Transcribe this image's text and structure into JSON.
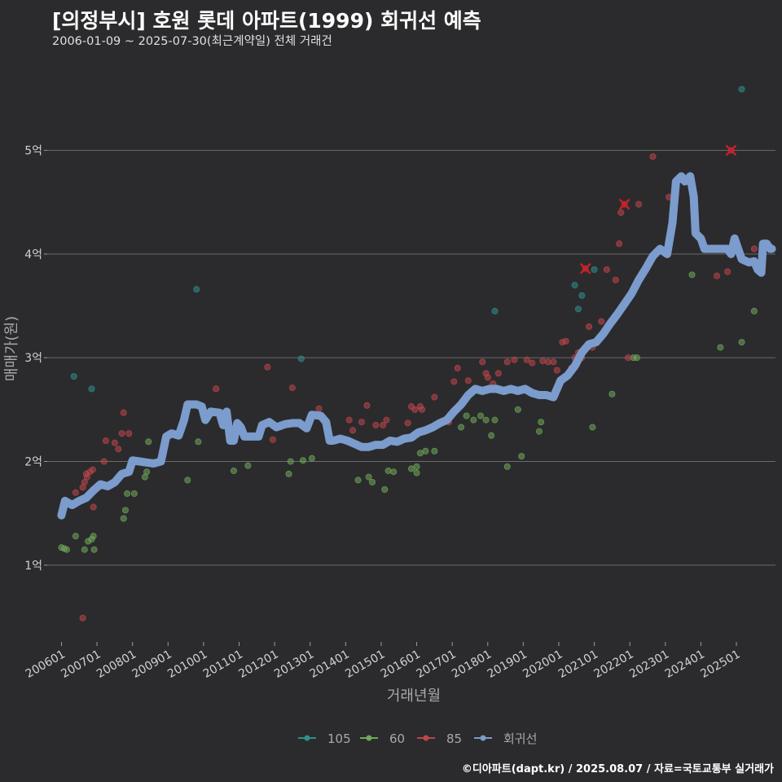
{
  "title": "[의정부시] 호원 롯데 아파트(1999) 회귀선 예측",
  "subtitle": "2006-01-09 ~ 2025-07-30(최근계약일) 전체 거래건",
  "footer": "©디아파트(dapt.kr) / 2025.08.07 / 자료=국토교통부 실거래가",
  "chart_data": {
    "type": "scatter",
    "xlabel": "거래년월",
    "ylabel": "매매가(원)",
    "xlim": [
      2005.6,
      2026.1
    ],
    "ylim": [
      0.26,
      5.9
    ],
    "y_unit": "억",
    "yticks": [
      {
        "value": 1,
        "label": "1억"
      },
      {
        "value": 2,
        "label": "2억"
      },
      {
        "value": 3,
        "label": "3억"
      },
      {
        "value": 4,
        "label": "4억"
      },
      {
        "value": 5,
        "label": "5억"
      }
    ],
    "xticks": [
      {
        "value": 2006.0,
        "label": "200601"
      },
      {
        "value": 2007.0,
        "label": "200701"
      },
      {
        "value": 2008.0,
        "label": "200801"
      },
      {
        "value": 2009.0,
        "label": "200901"
      },
      {
        "value": 2010.0,
        "label": "201001"
      },
      {
        "value": 2011.0,
        "label": "201101"
      },
      {
        "value": 2012.0,
        "label": "201201"
      },
      {
        "value": 2013.0,
        "label": "201301"
      },
      {
        "value": 2014.0,
        "label": "201401"
      },
      {
        "value": 2015.0,
        "label": "201501"
      },
      {
        "value": 2016.0,
        "label": "201601"
      },
      {
        "value": 2017.0,
        "label": "201701"
      },
      {
        "value": 2018.0,
        "label": "201801"
      },
      {
        "value": 2019.0,
        "label": "201901"
      },
      {
        "value": 2020.0,
        "label": "202001"
      },
      {
        "value": 2021.0,
        "label": "202101"
      },
      {
        "value": 2022.0,
        "label": "202201"
      },
      {
        "value": 2023.0,
        "label": "202301"
      },
      {
        "value": 2024.0,
        "label": "202401"
      },
      {
        "value": 2025.0,
        "label": "202501"
      }
    ],
    "legend_position": "bottom",
    "series": [
      {
        "name": "105",
        "color": "#2f8f8a",
        "points": [
          [
            2006.35,
            2.82
          ],
          [
            2006.85,
            2.7
          ],
          [
            2009.8,
            3.66
          ],
          [
            2012.75,
            2.99
          ],
          [
            2018.2,
            3.45
          ],
          [
            2020.45,
            3.7
          ],
          [
            2020.55,
            3.47
          ],
          [
            2020.65,
            3.6
          ],
          [
            2021.0,
            3.85
          ],
          [
            2025.15,
            5.59
          ]
        ]
      },
      {
        "name": "60",
        "color": "#6fa85a",
        "points": [
          [
            2006.0,
            1.17
          ],
          [
            2006.08,
            1.16
          ],
          [
            2006.15,
            1.15
          ],
          [
            2006.4,
            1.28
          ],
          [
            2006.65,
            1.15
          ],
          [
            2006.75,
            1.23
          ],
          [
            2006.85,
            1.25
          ],
          [
            2006.9,
            1.28
          ],
          [
            2006.92,
            1.15
          ],
          [
            2007.75,
            1.45
          ],
          [
            2007.8,
            1.53
          ],
          [
            2007.85,
            1.69
          ],
          [
            2008.05,
            1.69
          ],
          [
            2008.35,
            1.85
          ],
          [
            2008.4,
            1.9
          ],
          [
            2008.45,
            2.19
          ],
          [
            2009.55,
            1.82
          ],
          [
            2009.85,
            2.19
          ],
          [
            2010.85,
            1.91
          ],
          [
            2011.25,
            1.96
          ],
          [
            2012.4,
            1.88
          ],
          [
            2012.45,
            2.0
          ],
          [
            2012.8,
            2.01
          ],
          [
            2013.05,
            2.03
          ],
          [
            2014.35,
            1.82
          ],
          [
            2014.65,
            1.85
          ],
          [
            2014.75,
            1.8
          ],
          [
            2015.1,
            1.73
          ],
          [
            2015.2,
            1.91
          ],
          [
            2015.35,
            1.9
          ],
          [
            2015.85,
            1.93
          ],
          [
            2016.0,
            1.89
          ],
          [
            2016.0,
            1.95
          ],
          [
            2016.1,
            2.08
          ],
          [
            2016.25,
            2.1
          ],
          [
            2016.5,
            2.1
          ],
          [
            2017.25,
            2.33
          ],
          [
            2017.4,
            2.44
          ],
          [
            2017.6,
            2.4
          ],
          [
            2017.8,
            2.44
          ],
          [
            2017.95,
            2.4
          ],
          [
            2018.1,
            2.25
          ],
          [
            2018.2,
            2.4
          ],
          [
            2018.55,
            1.95
          ],
          [
            2018.85,
            2.5
          ],
          [
            2018.95,
            2.05
          ],
          [
            2019.45,
            2.29
          ],
          [
            2019.5,
            2.38
          ],
          [
            2020.95,
            2.33
          ],
          [
            2021.5,
            2.65
          ],
          [
            2022.1,
            3.0
          ],
          [
            2022.2,
            3.0
          ],
          [
            2023.75,
            3.8
          ],
          [
            2024.55,
            3.1
          ],
          [
            2025.15,
            3.15
          ],
          [
            2025.5,
            3.45
          ]
        ]
      },
      {
        "name": "85",
        "color": "#c0464a",
        "points": [
          [
            2006.4,
            1.7
          ],
          [
            2006.6,
            1.75
          ],
          [
            2006.65,
            1.8
          ],
          [
            2006.7,
            1.88
          ],
          [
            2006.72,
            1.85
          ],
          [
            2006.8,
            1.9
          ],
          [
            2006.88,
            1.92
          ],
          [
            2006.9,
            1.56
          ],
          [
            2007.2,
            2.0
          ],
          [
            2007.25,
            2.2
          ],
          [
            2007.5,
            2.18
          ],
          [
            2007.6,
            2.12
          ],
          [
            2007.7,
            2.27
          ],
          [
            2007.75,
            2.47
          ],
          [
            2007.9,
            2.27
          ],
          [
            2006.6,
            0.49
          ],
          [
            2010.35,
            2.7
          ],
          [
            2011.8,
            2.91
          ],
          [
            2011.95,
            2.21
          ],
          [
            2012.5,
            2.71
          ],
          [
            2013.25,
            2.51
          ],
          [
            2014.1,
            2.4
          ],
          [
            2014.2,
            2.3
          ],
          [
            2014.45,
            2.38
          ],
          [
            2014.6,
            2.54
          ],
          [
            2014.85,
            2.35
          ],
          [
            2015.05,
            2.35
          ],
          [
            2015.15,
            2.4
          ],
          [
            2015.75,
            2.37
          ],
          [
            2015.85,
            2.53
          ],
          [
            2015.95,
            2.5
          ],
          [
            2016.1,
            2.53
          ],
          [
            2016.15,
            2.5
          ],
          [
            2016.5,
            2.62
          ],
          [
            2016.9,
            2.38
          ],
          [
            2017.05,
            2.77
          ],
          [
            2017.15,
            2.9
          ],
          [
            2017.45,
            2.78
          ],
          [
            2017.85,
            2.96
          ],
          [
            2017.95,
            2.85
          ],
          [
            2018.0,
            2.81
          ],
          [
            2018.15,
            2.75
          ],
          [
            2018.3,
            2.85
          ],
          [
            2018.55,
            2.96
          ],
          [
            2018.75,
            2.98
          ],
          [
            2019.1,
            2.98
          ],
          [
            2019.25,
            2.95
          ],
          [
            2019.55,
            2.97
          ],
          [
            2019.7,
            2.96
          ],
          [
            2019.85,
            2.96
          ],
          [
            2019.95,
            2.88
          ],
          [
            2020.1,
            3.15
          ],
          [
            2020.2,
            3.16
          ],
          [
            2020.35,
            2.9
          ],
          [
            2020.45,
            3.0
          ],
          [
            2020.55,
            3.05
          ],
          [
            2020.65,
            3.0
          ],
          [
            2020.85,
            3.3
          ],
          [
            2020.95,
            3.1
          ],
          [
            2021.2,
            3.35
          ],
          [
            2021.35,
            3.85
          ],
          [
            2021.6,
            3.75
          ],
          [
            2021.7,
            4.1
          ],
          [
            2021.75,
            4.4
          ],
          [
            2021.95,
            3.0
          ],
          [
            2022.25,
            4.48
          ],
          [
            2022.65,
            4.94
          ],
          [
            2023.1,
            4.55
          ],
          [
            2024.45,
            3.79
          ],
          [
            2024.75,
            3.83
          ],
          [
            2025.5,
            4.05
          ]
        ]
      }
    ],
    "outliers": [
      [
        2020.75,
        3.86
      ],
      [
        2021.85,
        4.48
      ],
      [
        2024.85,
        5.0
      ]
    ],
    "regression": {
      "name": "회귀선",
      "color": "#7b9ccc",
      "points": [
        [
          2006.0,
          1.48
        ],
        [
          2006.1,
          1.62
        ],
        [
          2006.3,
          1.58
        ],
        [
          2006.5,
          1.62
        ],
        [
          2006.7,
          1.65
        ],
        [
          2006.9,
          1.72
        ],
        [
          2007.1,
          1.78
        ],
        [
          2007.3,
          1.76
        ],
        [
          2007.5,
          1.8
        ],
        [
          2007.7,
          1.88
        ],
        [
          2007.9,
          1.9
        ],
        [
          2008.0,
          2.01
        ],
        [
          2008.2,
          2.0
        ],
        [
          2008.4,
          1.99
        ],
        [
          2008.6,
          1.98
        ],
        [
          2008.8,
          2.0
        ],
        [
          2008.95,
          2.24
        ],
        [
          2009.1,
          2.27
        ],
        [
          2009.3,
          2.25
        ],
        [
          2009.45,
          2.4
        ],
        [
          2009.55,
          2.55
        ],
        [
          2009.8,
          2.55
        ],
        [
          2009.95,
          2.53
        ],
        [
          2010.05,
          2.4
        ],
        [
          2010.2,
          2.48
        ],
        [
          2010.45,
          2.47
        ],
        [
          2010.55,
          2.35
        ],
        [
          2010.65,
          2.48
        ],
        [
          2010.75,
          2.2
        ],
        [
          2010.85,
          2.2
        ],
        [
          2010.95,
          2.37
        ],
        [
          2011.05,
          2.33
        ],
        [
          2011.15,
          2.24
        ],
        [
          2011.4,
          2.24
        ],
        [
          2011.55,
          2.24
        ],
        [
          2011.65,
          2.35
        ],
        [
          2011.85,
          2.38
        ],
        [
          2012.05,
          2.33
        ],
        [
          2012.3,
          2.36
        ],
        [
          2012.5,
          2.37
        ],
        [
          2012.7,
          2.37
        ],
        [
          2012.9,
          2.32
        ],
        [
          2013.05,
          2.45
        ],
        [
          2013.3,
          2.44
        ],
        [
          2013.45,
          2.38
        ],
        [
          2013.55,
          2.2
        ],
        [
          2013.65,
          2.2
        ],
        [
          2013.85,
          2.22
        ],
        [
          2014.05,
          2.2
        ],
        [
          2014.25,
          2.17
        ],
        [
          2014.45,
          2.14
        ],
        [
          2014.65,
          2.14
        ],
        [
          2014.85,
          2.16
        ],
        [
          2015.05,
          2.16
        ],
        [
          2015.25,
          2.2
        ],
        [
          2015.45,
          2.19
        ],
        [
          2015.65,
          2.22
        ],
        [
          2015.85,
          2.23
        ],
        [
          2016.05,
          2.28
        ],
        [
          2016.25,
          2.3
        ],
        [
          2016.45,
          2.33
        ],
        [
          2016.65,
          2.37
        ],
        [
          2016.85,
          2.4
        ],
        [
          2017.05,
          2.48
        ],
        [
          2017.25,
          2.55
        ],
        [
          2017.45,
          2.64
        ],
        [
          2017.65,
          2.7
        ],
        [
          2017.85,
          2.68
        ],
        [
          2018.05,
          2.7
        ],
        [
          2018.25,
          2.7
        ],
        [
          2018.45,
          2.68
        ],
        [
          2018.65,
          2.7
        ],
        [
          2018.85,
          2.68
        ],
        [
          2019.05,
          2.7
        ],
        [
          2019.25,
          2.66
        ],
        [
          2019.45,
          2.64
        ],
        [
          2019.65,
          2.64
        ],
        [
          2019.85,
          2.62
        ],
        [
          2019.95,
          2.7
        ],
        [
          2020.05,
          2.78
        ],
        [
          2020.25,
          2.83
        ],
        [
          2020.45,
          2.92
        ],
        [
          2020.65,
          3.05
        ],
        [
          2020.85,
          3.13
        ],
        [
          2021.05,
          3.15
        ],
        [
          2021.25,
          3.23
        ],
        [
          2021.45,
          3.33
        ],
        [
          2021.65,
          3.42
        ],
        [
          2021.85,
          3.52
        ],
        [
          2022.05,
          3.62
        ],
        [
          2022.25,
          3.75
        ],
        [
          2022.45,
          3.86
        ],
        [
          2022.65,
          3.98
        ],
        [
          2022.85,
          4.05
        ],
        [
          2023.05,
          4.0
        ],
        [
          2023.2,
          4.3
        ],
        [
          2023.3,
          4.7
        ],
        [
          2023.45,
          4.75
        ],
        [
          2023.55,
          4.7
        ],
        [
          2023.7,
          4.75
        ],
        [
          2023.8,
          4.55
        ],
        [
          2023.85,
          4.2
        ],
        [
          2024.0,
          4.15
        ],
        [
          2024.1,
          4.05
        ],
        [
          2024.35,
          4.05
        ],
        [
          2024.55,
          4.05
        ],
        [
          2024.75,
          4.05
        ],
        [
          2024.85,
          4.0
        ],
        [
          2024.95,
          4.15
        ],
        [
          2025.05,
          4.05
        ],
        [
          2025.15,
          3.95
        ],
        [
          2025.35,
          3.92
        ],
        [
          2025.5,
          3.93
        ],
        [
          2025.6,
          3.85
        ],
        [
          2025.7,
          3.82
        ],
        [
          2025.75,
          4.1
        ],
        [
          2025.85,
          4.1
        ],
        [
          2025.95,
          4.05
        ],
        [
          2026.0,
          4.05
        ]
      ]
    }
  }
}
